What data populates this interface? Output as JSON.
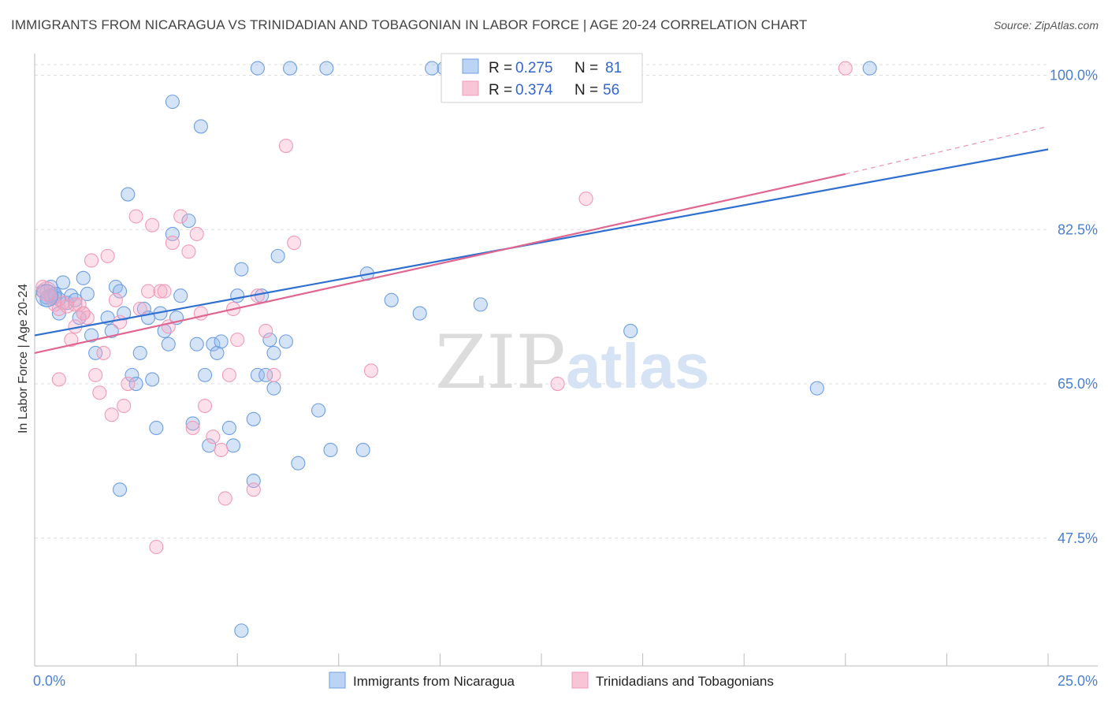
{
  "title": "IMMIGRANTS FROM NICARAGUA VS TRINIDADIAN AND TOBAGONIAN IN LABOR FORCE | AGE 20-24 CORRELATION CHART",
  "source": "Source: ZipAtlas.com",
  "watermark": {
    "zip": "ZIP",
    "atlas": "atlas"
  },
  "chart_data": {
    "type": "scatter",
    "xlabel": "",
    "ylabel": "In Labor Force | Age 20-24",
    "xlim": [
      0,
      25
    ],
    "ylim": [
      33,
      103
    ],
    "x_tick_labels": [
      "0.0%",
      "25.0%"
    ],
    "y_ticks": [
      47.5,
      65.0,
      82.5,
      100.0
    ],
    "y_tick_labels": [
      "47.5%",
      "65.0%",
      "82.5%",
      "100.0%"
    ],
    "grid": true,
    "legend_placement": "top-center",
    "colors": {
      "blue": "#6f9fe0",
      "blue_line": "#2f6fd0",
      "pink": "#f09ab8",
      "pink_line": "#e0668f"
    },
    "stats": [
      {
        "r_label": "R = ",
        "r": "0.275",
        "n_label": "N = ",
        "n": "81"
      },
      {
        "r_label": "R = ",
        "r": "0.374",
        "n_label": "N = ",
        "n": "56"
      }
    ],
    "series": [
      {
        "name": "Immigrants from Nicaragua",
        "trend": {
          "x0": 0,
          "y0": 70.5,
          "x1": 25,
          "y1": 91.6
        },
        "points": [
          [
            0.2,
            75.5
          ],
          [
            0.3,
            74.5
          ],
          [
            0.4,
            76
          ],
          [
            0.5,
            75
          ],
          [
            0.6,
            73
          ],
          [
            0.7,
            76.5
          ],
          [
            0.8,
            74.2
          ],
          [
            0.9,
            75
          ],
          [
            1.0,
            74.5
          ],
          [
            1.1,
            72.5
          ],
          [
            1.2,
            77
          ],
          [
            1.3,
            75.2
          ],
          [
            0.4,
            75
          ],
          [
            0.5,
            74.8
          ],
          [
            0.6,
            74.6
          ],
          [
            0.3,
            74.8
          ],
          [
            0.5,
            75.2
          ],
          [
            1.4,
            70.5
          ],
          [
            1.5,
            68.5
          ],
          [
            1.8,
            72.5
          ],
          [
            1.9,
            71
          ],
          [
            2.0,
            76
          ],
          [
            2.1,
            75.5
          ],
          [
            2.2,
            73
          ],
          [
            2.3,
            86.5
          ],
          [
            2.4,
            66
          ],
          [
            2.5,
            65
          ],
          [
            2.6,
            68.5
          ],
          [
            2.7,
            73.5
          ],
          [
            2.8,
            72.5
          ],
          [
            2.9,
            65.5
          ],
          [
            3.0,
            60
          ],
          [
            3.1,
            73
          ],
          [
            3.2,
            71
          ],
          [
            3.3,
            69.5
          ],
          [
            3.4,
            82
          ],
          [
            3.5,
            72.5
          ],
          [
            3.6,
            75
          ],
          [
            3.8,
            83.5
          ],
          [
            3.9,
            60.5
          ],
          [
            4.0,
            69.5
          ],
          [
            4.1,
            94.2
          ],
          [
            4.2,
            66
          ],
          [
            4.3,
            58
          ],
          [
            4.4,
            69.5
          ],
          [
            4.5,
            68.5
          ],
          [
            4.6,
            69.8
          ],
          [
            4.8,
            60
          ],
          [
            4.9,
            58
          ],
          [
            5.0,
            75
          ],
          [
            5.1,
            78
          ],
          [
            5.4,
            61
          ],
          [
            5.5,
            66
          ],
          [
            5.6,
            75
          ],
          [
            5.7,
            66
          ],
          [
            5.8,
            70
          ],
          [
            5.9,
            68.5
          ],
          [
            6.0,
            79.5
          ],
          [
            6.2,
            69.8
          ],
          [
            5.9,
            64.5
          ],
          [
            5.4,
            54
          ],
          [
            6.5,
            56
          ],
          [
            2.1,
            53
          ],
          [
            7.0,
            62
          ],
          [
            7.3,
            57.5
          ],
          [
            8.1,
            57.5
          ],
          [
            8.2,
            77.5
          ],
          [
            8.8,
            74.5
          ],
          [
            9.5,
            73
          ],
          [
            11.0,
            74
          ],
          [
            14.7,
            71
          ],
          [
            19.3,
            64.5
          ],
          [
            3.4,
            97
          ],
          [
            5.5,
            100.8
          ],
          [
            6.3,
            100.8
          ],
          [
            7.2,
            100.8
          ],
          [
            9.8,
            100.8
          ],
          [
            10.1,
            100.8
          ],
          [
            10.5,
            100.8
          ],
          [
            11.9,
            100.8
          ],
          [
            20.6,
            100.8
          ],
          [
            5.1,
            37
          ]
        ]
      },
      {
        "name": "Trinidadians and Tobagonians",
        "trend": {
          "x0": 0,
          "y0": 68.5,
          "x1": 20,
          "y1": 88.8,
          "dash_x1": 25,
          "dash_y1": 94.2
        },
        "points": [
          [
            0.2,
            76
          ],
          [
            0.3,
            75.5
          ],
          [
            0.4,
            74.8
          ],
          [
            0.5,
            74
          ],
          [
            0.6,
            73.5
          ],
          [
            0.7,
            74.2
          ],
          [
            0.8,
            73.8
          ],
          [
            0.9,
            70
          ],
          [
            1.0,
            71.5
          ],
          [
            1.1,
            74
          ],
          [
            1.2,
            73
          ],
          [
            1.3,
            72.5
          ],
          [
            1.4,
            79
          ],
          [
            1.5,
            66
          ],
          [
            1.6,
            64
          ],
          [
            1.7,
            68.5
          ],
          [
            1.8,
            79.5
          ],
          [
            1.9,
            61.5
          ],
          [
            2.0,
            74.5
          ],
          [
            2.2,
            62.5
          ],
          [
            2.3,
            65
          ],
          [
            2.5,
            84
          ],
          [
            2.6,
            73.5
          ],
          [
            2.8,
            75.5
          ],
          [
            2.9,
            83
          ],
          [
            3.0,
            46.5
          ],
          [
            3.1,
            75.5
          ],
          [
            3.2,
            75.5
          ],
          [
            3.3,
            71.5
          ],
          [
            3.4,
            81
          ],
          [
            3.6,
            84
          ],
          [
            3.8,
            80
          ],
          [
            3.9,
            60
          ],
          [
            4.0,
            82
          ],
          [
            4.1,
            73
          ],
          [
            4.2,
            62.5
          ],
          [
            4.4,
            59
          ],
          [
            4.6,
            57.5
          ],
          [
            4.7,
            52
          ],
          [
            4.8,
            66
          ],
          [
            4.9,
            73.5
          ],
          [
            5.0,
            70
          ],
          [
            5.4,
            53
          ],
          [
            5.5,
            75
          ],
          [
            5.7,
            71
          ],
          [
            5.9,
            66
          ],
          [
            6.2,
            92
          ],
          [
            6.4,
            81
          ],
          [
            8.3,
            66.5
          ],
          [
            12.9,
            65
          ],
          [
            13.6,
            86
          ],
          [
            0.6,
            65.5
          ],
          [
            1.2,
            73
          ],
          [
            20.0,
            100.8
          ],
          [
            2.1,
            72
          ],
          [
            1.0,
            74
          ]
        ]
      }
    ]
  },
  "legend_bottom": [
    "Immigrants from Nicaragua",
    "Trinidadians and Tobagonians"
  ]
}
